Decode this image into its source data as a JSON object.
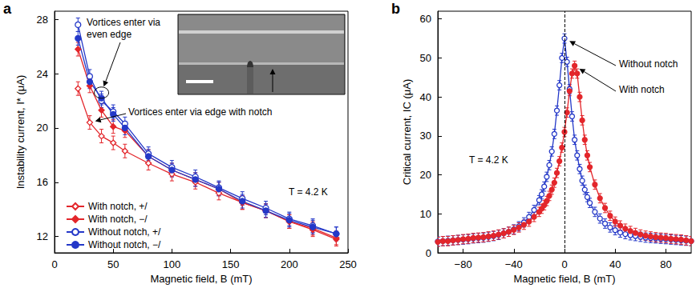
{
  "chart_data": [
    {
      "panel": "a",
      "type": "line",
      "x_label": "Magnetic field, B (mT)",
      "y_label": "Instability current, I* (μA)",
      "x": [
        20,
        30,
        40,
        50,
        60,
        80,
        100,
        120,
        140,
        160,
        180,
        200,
        220,
        240
      ],
      "series": [
        {
          "name": "With notch, +/",
          "color": "#e3262b",
          "marker": "open_diamond",
          "error": 0.5,
          "values": [
            22.9,
            20.4,
            19.4,
            18.9,
            18.3,
            17.4,
            16.6,
            16.0,
            15.2,
            14.5,
            13.9,
            13.1,
            12.6,
            11.9
          ]
        },
        {
          "name": "With notch, −/",
          "color": "#e3262b",
          "marker": "diamond",
          "error": 0.5,
          "values": [
            25.8,
            23.1,
            21.3,
            20.1,
            19.8,
            17.9,
            16.9,
            16.2,
            15.5,
            14.5,
            13.9,
            13.1,
            12.5,
            11.8
          ]
        },
        {
          "name": "Without notch, +/",
          "color": "#2438c8",
          "marker": "open_circle",
          "error": 0.5,
          "values": [
            27.6,
            23.8,
            22.0,
            21.2,
            20.3,
            18.1,
            17.1,
            16.4,
            15.6,
            14.8,
            14.1,
            13.3,
            12.8,
            12.2
          ]
        },
        {
          "name": "Without notch, −/",
          "color": "#2438c8",
          "marker": "circle",
          "error": 0.5,
          "values": [
            26.6,
            23.4,
            22.2,
            21.0,
            20.0,
            17.9,
            16.9,
            16.2,
            15.5,
            14.6,
            13.9,
            13.2,
            12.7,
            12.2
          ]
        }
      ],
      "xlim": [
        0,
        250
      ],
      "xticks": [
        0,
        50,
        100,
        150,
        200,
        250
      ],
      "ylim": [
        10.8,
        28.6
      ],
      "yticks": [
        12,
        16,
        20,
        24,
        28
      ],
      "grid": false,
      "legend": "lower left",
      "annotations": [
        {
          "text": "Vortices enter via even edge",
          "x": 40,
          "y": 22.6
        },
        {
          "text": "Vortices enter via edge with notch",
          "x": 30,
          "y": 20.4
        },
        {
          "text": "T = 4.2 K"
        }
      ]
    },
    {
      "panel": "b",
      "type": "line",
      "x_label": "Magnetic field, B (mT)",
      "y_label": "Critical current, IC (μA)",
      "x": [
        -100,
        -96,
        -92,
        -88,
        -84,
        -80,
        -76,
        -72,
        -68,
        -64,
        -60,
        -56,
        -52,
        -48,
        -44,
        -40,
        -36,
        -32,
        -28,
        -24,
        -20,
        -18,
        -16,
        -14,
        -12,
        -10,
        -8,
        -6,
        -4,
        -2,
        0,
        2,
        4,
        6,
        8,
        10,
        12,
        14,
        16,
        18,
        20,
        24,
        28,
        32,
        36,
        40,
        44,
        48,
        52,
        56,
        60,
        64,
        68,
        72,
        76,
        80,
        84,
        88,
        92,
        96,
        100
      ],
      "series": [
        {
          "color": "#2438c8",
          "marker": "open_circle",
          "error": 1.2,
          "values": [
            2.9,
            3.0,
            3.1,
            3.2,
            3.3,
            3.4,
            3.5,
            3.7,
            3.8,
            3.9,
            4.1,
            4.3,
            4.6,
            5.0,
            5.4,
            6.0,
            6.8,
            7.8,
            9.2,
            11.0,
            13.5,
            15.0,
            17.0,
            19.5,
            22.5,
            26.0,
            30.5,
            36.5,
            43.0,
            50.0,
            55.0,
            49.0,
            42.0,
            35.0,
            29.0,
            25.0,
            21.5,
            18.5,
            16.2,
            14.3,
            12.8,
            10.5,
            8.8,
            7.5,
            6.5,
            5.8,
            5.2,
            4.8,
            4.5,
            4.3,
            4.1,
            3.9,
            3.8,
            3.7,
            3.6,
            3.5,
            3.4,
            3.3,
            3.2,
            3.1,
            3.0
          ]
        },
        {
          "color": "#e3262b",
          "marker": "circle",
          "error": 1.2,
          "values": [
            2.8,
            3.0,
            3.0,
            3.2,
            3.3,
            3.5,
            3.6,
            3.8,
            3.9,
            4.0,
            4.2,
            4.4,
            4.7,
            5.0,
            5.4,
            5.9,
            6.5,
            7.2,
            8.0,
            9.2,
            10.5,
            11.3,
            12.2,
            13.3,
            14.6,
            16.2,
            18.0,
            20.5,
            23.5,
            27.0,
            31.0,
            36.0,
            41.5,
            46.0,
            48.0,
            46.0,
            40.0,
            34.0,
            29.0,
            25.0,
            22.0,
            17.5,
            14.0,
            11.5,
            9.5,
            8.0,
            7.0,
            6.2,
            5.6,
            5.1,
            4.7,
            4.4,
            4.2,
            4.0,
            3.9,
            3.8,
            3.6,
            3.5,
            3.4,
            3.2,
            3.0
          ]
        }
      ],
      "xlim": [
        -100,
        100
      ],
      "xticks": [
        {
          "value": -80,
          "label": "−80"
        },
        {
          "value": -40,
          "label": "−40"
        },
        0,
        40,
        80
      ],
      "ylim": [
        0,
        62
      ],
      "yticks": [
        0,
        10,
        20,
        30,
        40,
        50,
        60
      ],
      "grid": false,
      "reference_lines": [
        {
          "x": 0,
          "line_style": "dashed"
        }
      ],
      "annotations": [
        {
          "text": "Without notch",
          "x": 0,
          "y": 55
        },
        {
          "text": "With notch",
          "x": 8,
          "y": 48
        },
        {
          "text": "T = 4.2 K"
        }
      ]
    }
  ]
}
